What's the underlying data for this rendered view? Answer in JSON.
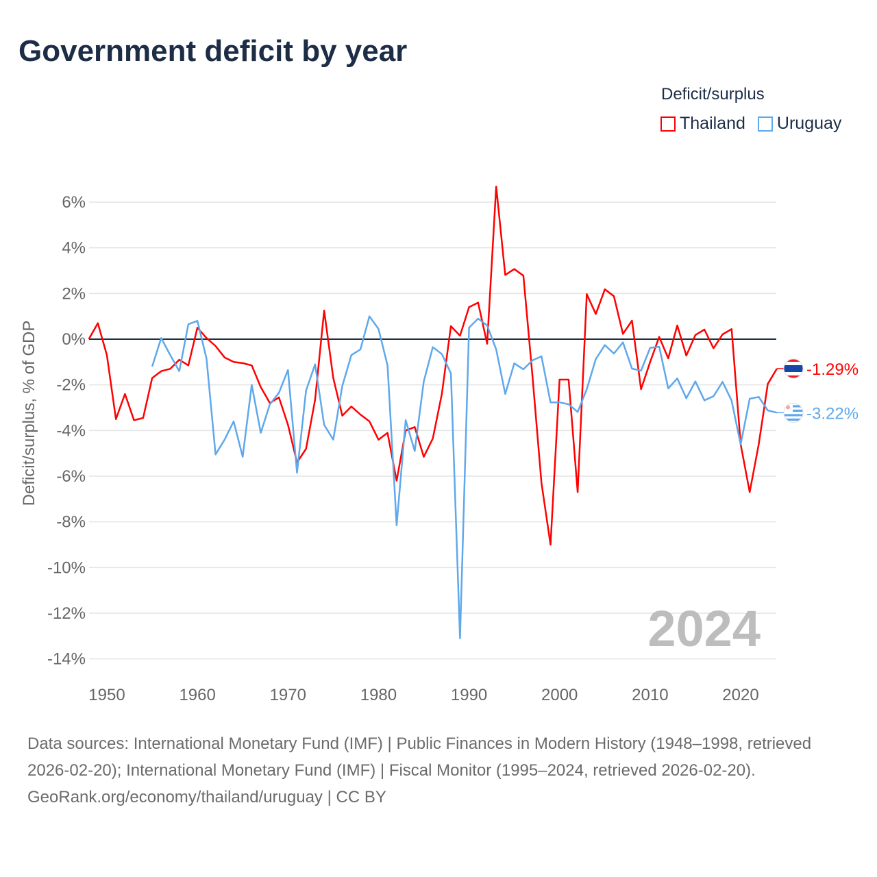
{
  "title": "Government deficit by year",
  "legend": {
    "title": "Deficit/surplus",
    "items": [
      {
        "label": "Thailand",
        "color": "#ff0000"
      },
      {
        "label": "Uruguay",
        "color": "#5ea8ec"
      }
    ]
  },
  "year_watermark": "2024",
  "footer": {
    "sources": "Data sources: International Monetary Fund (IMF) | Public Finances in Modern History (1948–1998, retrieved 2026-02-20); International Monetary Fund (IMF) | Fiscal Monitor (1995–2024, retrieved 2026-02-20).",
    "credit": "GeoRank.org/economy/thailand/uruguay | CC BY"
  },
  "chart_data": {
    "type": "line",
    "title": "Government deficit by year",
    "xlabel": "",
    "ylabel": "Deficit/surplus, % of GDP",
    "xlim": [
      1948,
      2024
    ],
    "ylim": [
      -14.5,
      6.5
    ],
    "x_ticks": [
      1950,
      1960,
      1970,
      1980,
      1990,
      2000,
      2010,
      2020
    ],
    "x_tick_labels": [
      "1950",
      "1960",
      "1970",
      "1980",
      "1990",
      "2000",
      "2010",
      "2020"
    ],
    "y_ticks": [
      6,
      4,
      2,
      0,
      -2,
      -4,
      -6,
      -8,
      -10,
      -12,
      -14
    ],
    "y_tick_labels": [
      "6%",
      "4%",
      "2%",
      "0%",
      "-2%",
      "-4%",
      "-6%",
      "-8%",
      "-10%",
      "-12%",
      "-14%"
    ],
    "grid": true,
    "legend_position": "top-right",
    "series": [
      {
        "name": "Thailand",
        "color": "#ff0000",
        "end_label": "-1.29%",
        "start_year": 1948,
        "values": [
          0,
          0.7,
          -0.7,
          -3.5,
          -2.4,
          -3.55,
          -3.45,
          -1.7,
          -1.4,
          -1.3,
          -0.9,
          -1.15,
          0.5,
          0.05,
          -0.3,
          -0.8,
          -1.0,
          -1.05,
          -1.15,
          -2.1,
          -2.8,
          -2.55,
          -3.75,
          -5.4,
          -4.8,
          -2.65,
          1.25,
          -1.7,
          -3.35,
          -2.95,
          -3.3,
          -3.6,
          -4.4,
          -4.1,
          -6.2,
          -4.0,
          -3.85,
          -5.15,
          -4.35,
          -2.4,
          0.57,
          0.15,
          1.4,
          1.6,
          -0.2,
          6.68,
          2.81,
          3.07,
          2.78,
          -1.6,
          -6.3,
          -9.0,
          -1.77,
          -1.77,
          -6.7,
          1.97,
          1.1,
          2.18,
          1.88,
          0.23,
          0.81,
          -2.19,
          -1.0,
          0.1,
          -0.84,
          0.6,
          -0.72,
          0.18,
          0.42,
          -0.4,
          0.21,
          0.44,
          -4.6,
          -6.7,
          -4.6,
          -1.96,
          -1.29
        ]
      },
      {
        "name": "Uruguay",
        "color": "#5ea8ec",
        "end_label": "-3.22%",
        "start_year": 1955,
        "values": [
          -1.2,
          0.05,
          -0.7,
          -1.4,
          0.65,
          0.8,
          -0.85,
          -5.05,
          -4.4,
          -3.6,
          -5.15,
          -2.0,
          -4.1,
          -2.85,
          -2.35,
          -1.35,
          -5.85,
          -2.25,
          -1.1,
          -3.75,
          -4.4,
          -2.05,
          -0.7,
          -0.45,
          1.0,
          0.45,
          -1.15,
          -8.15,
          -3.55,
          -4.9,
          -1.85,
          -0.35,
          -0.65,
          -1.5,
          -13.1,
          0.5,
          0.9,
          0.6,
          -0.45,
          -2.4,
          -1.06,
          -1.32,
          -0.93,
          -0.75,
          -2.77,
          -2.77,
          -2.85,
          -3.19,
          -2.19,
          -0.87,
          -0.26,
          -0.63,
          -0.14,
          -1.29,
          -1.38,
          -0.38,
          -0.33,
          -2.16,
          -1.72,
          -2.59,
          -1.85,
          -2.68,
          -2.5,
          -1.87,
          -2.69,
          -4.61,
          -2.61,
          -2.53,
          -3.12,
          -3.22
        ]
      }
    ]
  }
}
